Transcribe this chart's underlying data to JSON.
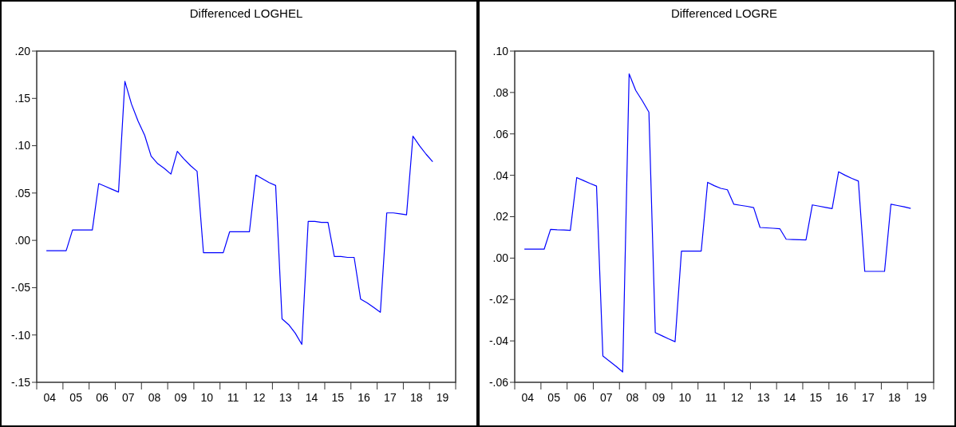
{
  "chart_data": [
    {
      "type": "line",
      "title": "Differenced LOGHEL",
      "x": [
        "2004-05-15",
        "2004-08-15",
        "2004-11-15",
        "2005-02-15",
        "2005-05-15",
        "2005-08-15",
        "2005-11-15",
        "2006-02-15",
        "2006-05-15",
        "2006-08-15",
        "2006-11-15",
        "2007-02-15",
        "2007-05-15",
        "2007-08-15",
        "2007-11-15",
        "2008-02-15",
        "2008-05-15",
        "2008-08-15",
        "2008-11-15",
        "2009-02-15",
        "2009-05-15",
        "2009-08-15",
        "2009-11-15",
        "2010-02-15",
        "2010-05-15",
        "2010-08-15",
        "2010-11-15",
        "2011-02-15",
        "2011-05-15",
        "2011-08-15",
        "2011-11-15",
        "2012-02-15",
        "2012-05-15",
        "2012-08-15",
        "2012-11-15",
        "2013-02-15",
        "2013-05-15",
        "2013-08-15",
        "2013-11-15",
        "2014-02-15",
        "2014-05-15",
        "2014-08-15",
        "2014-11-15",
        "2015-02-15",
        "2015-05-15",
        "2015-08-15",
        "2015-11-15",
        "2016-02-15",
        "2016-05-15",
        "2016-08-15",
        "2016-11-15",
        "2017-02-15",
        "2017-05-15",
        "2017-08-15",
        "2017-11-15",
        "2018-02-15",
        "2018-05-15",
        "2018-08-15",
        "2018-11-15",
        "2019-02-15"
      ],
      "series": [
        {
          "color": "#0000ff",
          "values": [
            -0.011,
            -0.011,
            -0.011,
            -0.011,
            0.011,
            0.011,
            0.011,
            0.011,
            0.06,
            0.057,
            0.054,
            0.051,
            0.168,
            0.144,
            0.126,
            0.111,
            0.089,
            0.081,
            0.076,
            0.07,
            0.094,
            0.086,
            0.079,
            0.073,
            -0.013,
            -0.013,
            -0.013,
            -0.013,
            0.009,
            0.009,
            0.009,
            0.009,
            0.069,
            0.065,
            0.061,
            0.058,
            -0.083,
            -0.089,
            -0.098,
            -0.11,
            0.02,
            0.02,
            0.019,
            0.019,
            -0.017,
            -0.017,
            -0.018,
            -0.018,
            -0.062,
            -0.066,
            -0.071,
            -0.076,
            0.029,
            0.029,
            0.028,
            0.027,
            0.11,
            0.1,
            0.091,
            0.083
          ]
        }
      ],
      "xlim": [
        "2004",
        "2020"
      ],
      "xticks": [
        {
          "value": "2004",
          "label": null
        },
        {
          "value": "2005",
          "label": null
        },
        {
          "value": "2006",
          "label": null
        },
        {
          "value": "2007",
          "label": null
        },
        {
          "value": "2008",
          "label": null
        },
        {
          "value": "2009",
          "label": null
        },
        {
          "value": "2010",
          "label": null
        },
        {
          "value": "2011",
          "label": null
        },
        {
          "value": "2012",
          "label": null
        },
        {
          "value": "2013",
          "label": null
        },
        {
          "value": "2014",
          "label": null
        },
        {
          "value": "2015",
          "label": null
        },
        {
          "value": "2016",
          "label": null
        },
        {
          "value": "2017",
          "label": null
        },
        {
          "value": "2018",
          "label": null
        },
        {
          "value": "2019",
          "label": null
        },
        {
          "value": "2020",
          "label": null
        },
        {
          "value": "2004-07",
          "label": "04"
        },
        {
          "value": "2005-07",
          "label": "05"
        },
        {
          "value": "2006-07",
          "label": "06"
        },
        {
          "value": "2007-07",
          "label": "07"
        },
        {
          "value": "2008-07",
          "label": "08"
        },
        {
          "value": "2009-07",
          "label": "09"
        },
        {
          "value": "2010-07",
          "label": "10"
        },
        {
          "value": "2011-07",
          "label": "11"
        },
        {
          "value": "2012-07",
          "label": "12"
        },
        {
          "value": "2013-07",
          "label": "13"
        },
        {
          "value": "2014-07",
          "label": "14"
        },
        {
          "value": "2015-07",
          "label": "15"
        },
        {
          "value": "2016-07",
          "label": "16"
        },
        {
          "value": "2017-07",
          "label": "17"
        },
        {
          "value": "2018-07",
          "label": "18"
        },
        {
          "value": "2019-07",
          "label": "19"
        }
      ],
      "ylim": [
        -0.15,
        0.2
      ],
      "yticks": [
        {
          "value": -0.15,
          "label": "-.15"
        },
        {
          "value": -0.1,
          "label": "-.10"
        },
        {
          "value": -0.05,
          "label": "-.05"
        },
        {
          "value": 0,
          "label": ".00"
        },
        {
          "value": 0.05,
          "label": ".05"
        },
        {
          "value": 0.1,
          "label": ".10"
        },
        {
          "value": 0.15,
          "label": ".15"
        },
        {
          "value": 0.2,
          "label": ".20"
        }
      ]
    },
    {
      "type": "line",
      "title": "Differenced LOGRE",
      "x": [
        "2004-05-15",
        "2004-08-15",
        "2004-11-15",
        "2005-02-15",
        "2005-05-15",
        "2005-08-15",
        "2005-11-15",
        "2006-02-15",
        "2006-05-15",
        "2006-08-15",
        "2006-11-15",
        "2007-02-15",
        "2007-05-15",
        "2007-08-15",
        "2007-11-15",
        "2008-02-15",
        "2008-05-15",
        "2008-08-15",
        "2008-11-15",
        "2009-02-15",
        "2009-05-15",
        "2009-08-15",
        "2009-11-15",
        "2010-02-15",
        "2010-05-15",
        "2010-08-15",
        "2010-11-15",
        "2011-02-15",
        "2011-05-15",
        "2011-08-15",
        "2011-11-15",
        "2012-02-15",
        "2012-05-15",
        "2012-08-15",
        "2012-11-15",
        "2013-02-15",
        "2013-05-15",
        "2013-08-15",
        "2013-11-15",
        "2014-02-15",
        "2014-05-15",
        "2014-08-15",
        "2014-11-15",
        "2015-02-15",
        "2015-05-15",
        "2015-08-15",
        "2015-11-15",
        "2016-02-15",
        "2016-05-15",
        "2016-08-15",
        "2016-11-15",
        "2017-02-15",
        "2017-05-15",
        "2017-08-15",
        "2017-11-15",
        "2018-02-15",
        "2018-05-15",
        "2018-08-15",
        "2018-11-15",
        "2019-02-15"
      ],
      "series": [
        {
          "color": "#0000ff",
          "values": [
            0.0043,
            0.0043,
            0.0043,
            0.0043,
            0.0139,
            0.0137,
            0.0136,
            0.0134,
            0.0389,
            0.0375,
            0.0361,
            0.0348,
            -0.0473,
            -0.0498,
            -0.0523,
            -0.055,
            0.089,
            0.081,
            0.076,
            0.0705,
            -0.036,
            -0.0375,
            -0.039,
            -0.0404,
            0.0034,
            0.0034,
            0.0034,
            0.0034,
            0.0366,
            0.035,
            0.0337,
            0.033,
            0.026,
            0.0255,
            0.025,
            0.0244,
            0.0148,
            0.0146,
            0.0144,
            0.0142,
            0.0091,
            0.009,
            0.0089,
            0.0088,
            0.0257,
            0.0251,
            0.0245,
            0.0239,
            0.0417,
            0.04,
            0.0385,
            0.0372,
            -0.0064,
            -0.0064,
            -0.0064,
            -0.0064,
            0.026,
            0.0254,
            0.0248,
            0.024
          ]
        }
      ],
      "xlim": [
        "2004",
        "2020"
      ],
      "xticks": [
        {
          "value": "2004",
          "label": null
        },
        {
          "value": "2005",
          "label": null
        },
        {
          "value": "2006",
          "label": null
        },
        {
          "value": "2007",
          "label": null
        },
        {
          "value": "2008",
          "label": null
        },
        {
          "value": "2009",
          "label": null
        },
        {
          "value": "2010",
          "label": null
        },
        {
          "value": "2011",
          "label": null
        },
        {
          "value": "2012",
          "label": null
        },
        {
          "value": "2013",
          "label": null
        },
        {
          "value": "2014",
          "label": null
        },
        {
          "value": "2015",
          "label": null
        },
        {
          "value": "2016",
          "label": null
        },
        {
          "value": "2017",
          "label": null
        },
        {
          "value": "2018",
          "label": null
        },
        {
          "value": "2019",
          "label": null
        },
        {
          "value": "2020",
          "label": null
        },
        {
          "value": "2004-07",
          "label": "04"
        },
        {
          "value": "2005-07",
          "label": "05"
        },
        {
          "value": "2006-07",
          "label": "06"
        },
        {
          "value": "2007-07",
          "label": "07"
        },
        {
          "value": "2008-07",
          "label": "08"
        },
        {
          "value": "2009-07",
          "label": "09"
        },
        {
          "value": "2010-07",
          "label": "10"
        },
        {
          "value": "2011-07",
          "label": "11"
        },
        {
          "value": "2012-07",
          "label": "12"
        },
        {
          "value": "2013-07",
          "label": "13"
        },
        {
          "value": "2014-07",
          "label": "14"
        },
        {
          "value": "2015-07",
          "label": "15"
        },
        {
          "value": "2016-07",
          "label": "16"
        },
        {
          "value": "2017-07",
          "label": "17"
        },
        {
          "value": "2018-07",
          "label": "18"
        },
        {
          "value": "2019-07",
          "label": "19"
        }
      ],
      "ylim": [
        -0.06,
        0.1
      ],
      "yticks": [
        {
          "value": -0.06,
          "label": "-.06"
        },
        {
          "value": -0.04,
          "label": "-.04"
        },
        {
          "value": -0.02,
          "label": "-.02"
        },
        {
          "value": 0,
          "label": ".00"
        },
        {
          "value": 0.02,
          "label": ".02"
        },
        {
          "value": 0.04,
          "label": ".04"
        },
        {
          "value": 0.06,
          "label": ".06"
        },
        {
          "value": 0.08,
          "label": ".08"
        },
        {
          "value": 0.1,
          "label": ".10"
        }
      ]
    }
  ]
}
